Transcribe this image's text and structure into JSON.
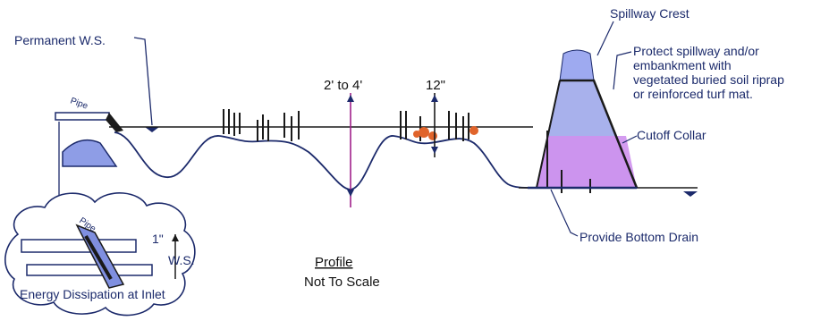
{
  "labels": {
    "permanent_ws": "Permanent W.S.",
    "pipe": "Pipe",
    "depth_range": "2' to 4'",
    "depth_12": "12\"",
    "spillway_crest": "Spillway Crest",
    "protect_note_1": "Protect spillway and/or",
    "protect_note_2": "embankment with",
    "protect_note_3": "vegetated buried soil riprap",
    "protect_note_4": "or reinforced turf mat.",
    "cutoff_collar": "Cutoff Collar",
    "bottom_drain": "Provide Bottom Drain",
    "profile_title": "Profile",
    "not_to_scale": "Not To Scale",
    "inset_title": "Energy Dissipation at Inlet",
    "inset_one_inch": "1\"",
    "inset_ws": "W.S.",
    "inset_pipe": "Pipe"
  },
  "colors": {
    "ink": "#1c2a6b",
    "water": "#7f8fe0",
    "water_light": "#a9b4ef",
    "collar_fill": "#c98be8",
    "marker": "#a0208a",
    "plants": "#e0642b",
    "text": "#1b2a6b"
  }
}
